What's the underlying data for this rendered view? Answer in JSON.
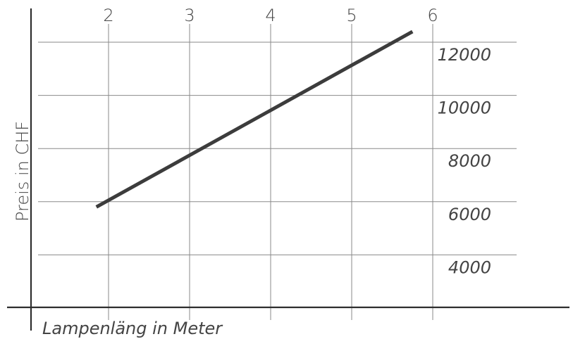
{
  "chart_data": {
    "type": "line",
    "title": "",
    "xlabel": "Lampenläng in Meter",
    "ylabel": "Preis in CHF",
    "x_ticks": [
      "2",
      "3",
      "4",
      "5",
      "6"
    ],
    "y_ticks": [
      "4000",
      "6000",
      "8000",
      "10000",
      "12000"
    ],
    "xlim": [
      1,
      6.2
    ],
    "ylim": [
      2000,
      12800
    ],
    "grid": true,
    "series": [
      {
        "x": [
          1.85,
          5.75
        ],
        "y": [
          5800,
          12400
        ]
      }
    ],
    "colors": {
      "line": "#3c3c3c",
      "grid": "#8a8a8a",
      "axis": "#2e2e2e"
    }
  }
}
